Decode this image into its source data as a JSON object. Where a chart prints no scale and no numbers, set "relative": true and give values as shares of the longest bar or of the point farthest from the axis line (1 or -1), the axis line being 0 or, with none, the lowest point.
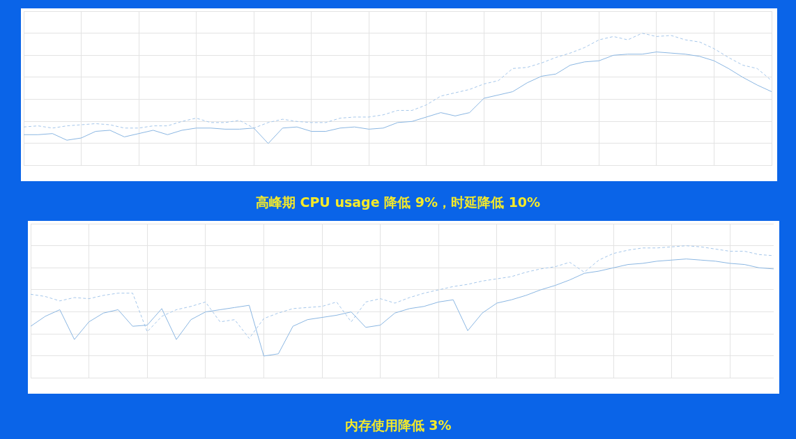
{
  "chart_data": [
    {
      "type": "line",
      "title": "高峰期 CPU usage 降低 9%，时延降低 10%",
      "relative": true,
      "grid": true,
      "legend": false,
      "marker": "none",
      "categories": [
        null,
        null,
        null,
        null,
        null,
        null,
        null,
        null,
        null,
        null,
        null,
        null,
        null,
        null,
        null,
        null,
        null,
        null,
        null,
        null,
        null,
        null,
        null,
        null,
        null,
        null,
        null,
        null,
        null,
        null,
        null,
        null,
        null,
        null,
        null,
        null,
        null,
        null,
        null,
        null,
        null,
        null,
        null,
        null,
        null,
        null,
        null,
        null,
        null,
        null,
        null,
        null,
        null
      ],
      "series": [
        {
          "color": "#8ab6e2",
          "line_style": "solid",
          "values": [
            0.08,
            0.08,
            0.09,
            0.03,
            0.05,
            0.11,
            0.12,
            0.06,
            0.09,
            0.12,
            0.08,
            0.12,
            0.14,
            0.14,
            0.13,
            0.13,
            0.14,
            0,
            0.14,
            0.15,
            0.11,
            0.11,
            0.14,
            0.15,
            0.13,
            0.14,
            0.19,
            0.2,
            0.24,
            0.28,
            0.25,
            0.28,
            0.41,
            0.44,
            0.47,
            0.55,
            0.61,
            0.63,
            0.71,
            0.74,
            0.75,
            0.8,
            0.81,
            0.81,
            0.83,
            0.82,
            0.81,
            0.79,
            0.75,
            0.68,
            0.6,
            0.53,
            0.47
          ]
        },
        {
          "color": "#a4c6ea",
          "line_style": "dashed",
          "values": [
            0.15,
            0.16,
            0.14,
            0.16,
            0.17,
            0.18,
            0.17,
            0.14,
            0.14,
            0.16,
            0.16,
            0.2,
            0.23,
            0.19,
            0.19,
            0.21,
            0.14,
            0.19,
            0.22,
            0.2,
            0.19,
            0.19,
            0.23,
            0.24,
            0.24,
            0.26,
            0.3,
            0.3,
            0.35,
            0.43,
            0.46,
            0.49,
            0.54,
            0.57,
            0.68,
            0.69,
            0.73,
            0.78,
            0.82,
            0.87,
            0.94,
            0.97,
            0.94,
            1,
            0.97,
            0.98,
            0.94,
            0.92,
            0.86,
            0.78,
            0.71,
            0.68,
            0.57
          ]
        }
      ]
    },
    {
      "type": "line",
      "title": "内存使用降低 3%",
      "relative": true,
      "grid": true,
      "legend": false,
      "marker": "none",
      "categories": [
        null,
        null,
        null,
        null,
        null,
        null,
        null,
        null,
        null,
        null,
        null,
        null,
        null,
        null,
        null,
        null,
        null,
        null,
        null,
        null,
        null,
        null,
        null,
        null,
        null,
        null,
        null,
        null,
        null,
        null,
        null,
        null,
        null,
        null,
        null,
        null,
        null,
        null,
        null,
        null,
        null,
        null,
        null,
        null,
        null,
        null,
        null,
        null,
        null,
        null,
        null,
        null
      ],
      "series": [
        {
          "color": "#8ab6e2",
          "line_style": "solid",
          "values": [
            0.27,
            0.36,
            0.42,
            0.15,
            0.31,
            0.39,
            0.42,
            0.27,
            0.28,
            0.43,
            0.15,
            0.33,
            0.4,
            0.42,
            0.44,
            0.46,
            0,
            0.02,
            0.27,
            0.33,
            0.35,
            0.37,
            0.4,
            0.26,
            0.28,
            0.39,
            0.43,
            0.45,
            0.49,
            0.51,
            0.23,
            0.39,
            0.48,
            0.51,
            0.55,
            0.6,
            0.64,
            0.69,
            0.75,
            0.77,
            0.8,
            0.83,
            0.84,
            0.86,
            0.87,
            0.88,
            0.87,
            0.86,
            0.84,
            0.83,
            0.8,
            0.79
          ]
        },
        {
          "color": "#a4c6ea",
          "line_style": "dashed",
          "values": [
            0.56,
            0.54,
            0.5,
            0.53,
            0.52,
            0.55,
            0.57,
            0.57,
            0.22,
            0.36,
            0.42,
            0.45,
            0.49,
            0.31,
            0.33,
            0.16,
            0.34,
            0.39,
            0.43,
            0.44,
            0.45,
            0.49,
            0.31,
            0.49,
            0.52,
            0.48,
            0.53,
            0.57,
            0.6,
            0.63,
            0.65,
            0.68,
            0.7,
            0.72,
            0.76,
            0.79,
            0.81,
            0.85,
            0.76,
            0.87,
            0.93,
            0.96,
            0.98,
            0.98,
            0.99,
            1,
            0.99,
            0.97,
            0.95,
            0.95,
            0.92,
            0.91
          ]
        }
      ]
    }
  ]
}
